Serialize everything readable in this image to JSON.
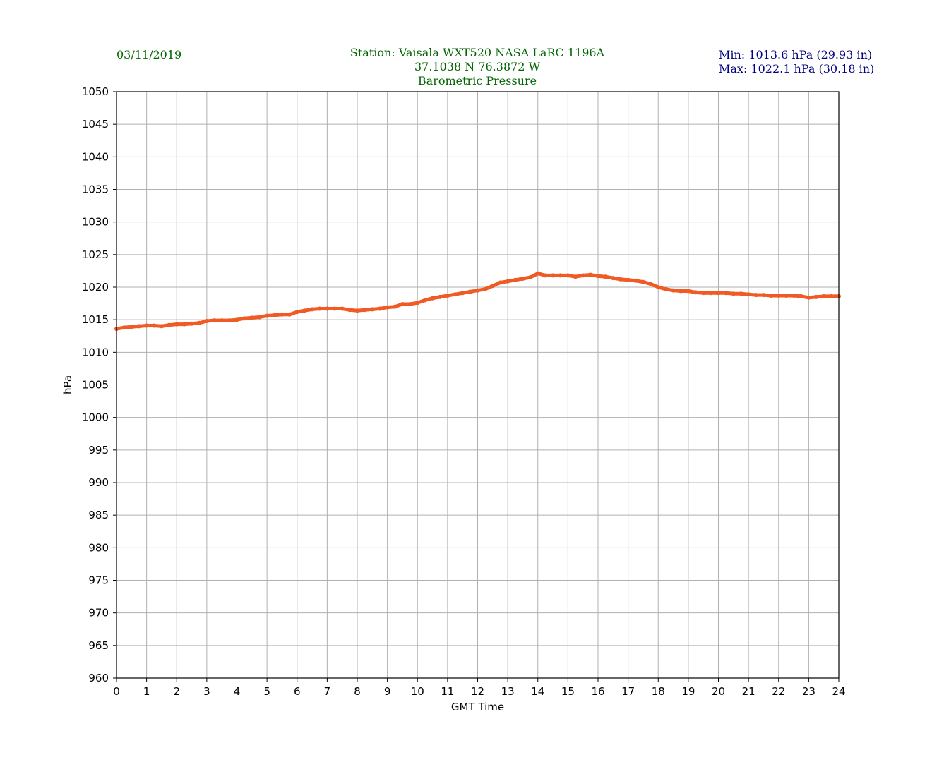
{
  "header": {
    "date": "03/11/2019",
    "station_line": "Station:  Vaisala WXT520  NASA LaRC 1196A",
    "coords_line": "37.1038 N 76.3872 W",
    "variable_line": "Barometric Pressure",
    "min_line": "Min: 1013.6 hPa (29.93 in)",
    "max_line": "Max: 1022.1 hPa (30.18 in)"
  },
  "colors": {
    "header_green": "#006400",
    "header_navy": "#000080",
    "series": "#f05a24",
    "grid": "#b0b0b0"
  },
  "chart_data": {
    "type": "line",
    "title": "Barometric Pressure",
    "xlabel": "GMT Time",
    "ylabel": "hPa",
    "xlim": [
      0,
      24
    ],
    "ylim": [
      960,
      1050
    ],
    "xticks": [
      0,
      1,
      2,
      3,
      4,
      5,
      6,
      7,
      8,
      9,
      10,
      11,
      12,
      13,
      14,
      15,
      16,
      17,
      18,
      19,
      20,
      21,
      22,
      23,
      24
    ],
    "yticks": [
      960,
      965,
      970,
      975,
      980,
      985,
      990,
      995,
      1000,
      1005,
      1010,
      1015,
      1020,
      1025,
      1030,
      1035,
      1040,
      1045,
      1050
    ],
    "grid": true,
    "series": [
      {
        "x": [
          0,
          0.25,
          0.5,
          0.75,
          1,
          1.25,
          1.5,
          1.75,
          2,
          2.25,
          2.5,
          2.75,
          3,
          3.25,
          3.5,
          3.75,
          4,
          4.25,
          4.5,
          4.75,
          5,
          5.25,
          5.5,
          5.75,
          6,
          6.25,
          6.5,
          6.75,
          7,
          7.25,
          7.5,
          7.75,
          8,
          8.25,
          8.5,
          8.75,
          9,
          9.25,
          9.5,
          9.75,
          10,
          10.25,
          10.5,
          10.75,
          11,
          11.25,
          11.5,
          11.75,
          12,
          12.25,
          12.5,
          12.75,
          13,
          13.25,
          13.5,
          13.75,
          14,
          14.25,
          14.5,
          14.75,
          15,
          15.25,
          15.5,
          15.75,
          16,
          16.25,
          16.5,
          16.75,
          17,
          17.25,
          17.5,
          17.75,
          18,
          18.25,
          18.5,
          18.75,
          19,
          19.25,
          19.5,
          19.75,
          20,
          20.25,
          20.5,
          20.75,
          21,
          21.25,
          21.5,
          21.75,
          22,
          22.25,
          22.5,
          22.75,
          23,
          23.25,
          23.5,
          23.75,
          24
        ],
        "y": [
          1013.6,
          1013.8,
          1013.9,
          1014.0,
          1014.1,
          1014.1,
          1014.0,
          1014.2,
          1014.3,
          1014.3,
          1014.4,
          1014.5,
          1014.8,
          1014.9,
          1014.9,
          1014.9,
          1015.0,
          1015.2,
          1015.3,
          1015.4,
          1015.6,
          1015.7,
          1015.8,
          1015.8,
          1016.2,
          1016.4,
          1016.6,
          1016.7,
          1016.7,
          1016.7,
          1016.7,
          1016.5,
          1016.4,
          1016.5,
          1016.6,
          1016.7,
          1016.9,
          1017.0,
          1017.4,
          1017.4,
          1017.6,
          1018.0,
          1018.3,
          1018.5,
          1018.7,
          1018.9,
          1019.1,
          1019.3,
          1019.5,
          1019.7,
          1020.2,
          1020.7,
          1020.9,
          1021.1,
          1021.3,
          1021.5,
          1022.1,
          1021.8,
          1021.8,
          1021.8,
          1021.8,
          1021.6,
          1021.8,
          1021.9,
          1021.7,
          1021.6,
          1021.4,
          1021.2,
          1021.1,
          1021.0,
          1020.8,
          1020.5,
          1020.0,
          1019.7,
          1019.5,
          1019.4,
          1019.4,
          1019.2,
          1019.1,
          1019.1,
          1019.1,
          1019.1,
          1019.0,
          1019.0,
          1018.9,
          1018.8,
          1018.8,
          1018.7,
          1018.7,
          1018.7,
          1018.7,
          1018.6,
          1018.4,
          1018.5,
          1018.6,
          1018.6,
          1018.6
        ]
      }
    ]
  }
}
